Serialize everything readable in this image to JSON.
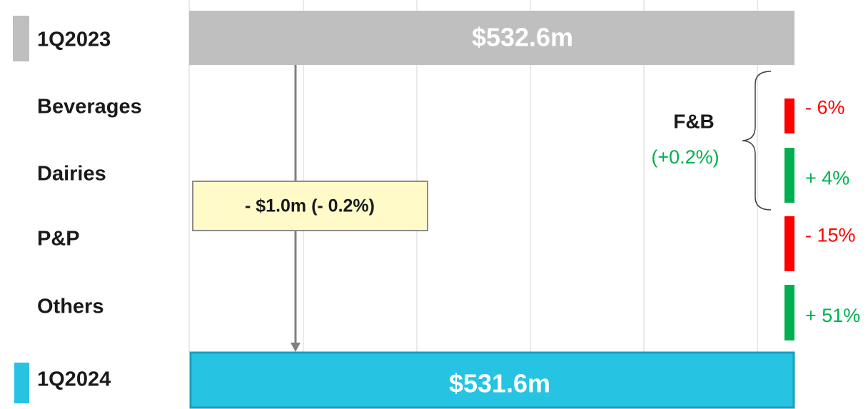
{
  "periods": [
    {
      "label": "1Q2023",
      "value": "$532.6m"
    },
    {
      "label": "1Q2024",
      "value": "$531.6m"
    }
  ],
  "segments": [
    {
      "label": "Beverages",
      "change": "- 6%",
      "direction": "down"
    },
    {
      "label": "Dairies",
      "change": "+ 4%",
      "direction": "up"
    },
    {
      "label": "P&P",
      "change": "- 15%",
      "direction": "down"
    },
    {
      "label": "Others",
      "change": "+ 51%",
      "direction": "up"
    }
  ],
  "change": "- $1.0m (- 0.2%)",
  "group": {
    "label": "F&B",
    "change": "(+0.2%)"
  }
}
